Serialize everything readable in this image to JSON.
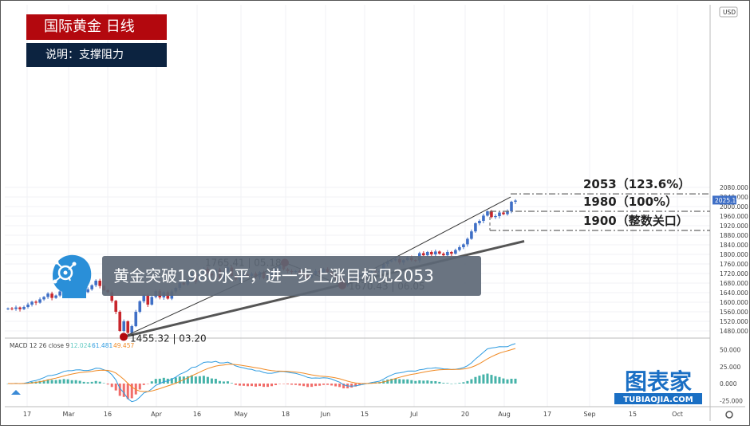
{
  "title": "国际黄金 日线",
  "subtitle": "说明：支撑阻力",
  "headline": "黄金突破1980水平，进一步上涨目标见2053",
  "watermark": {
    "brand": "图表家",
    "domain": "TUBIAOJIA.COM"
  },
  "price_axis": {
    "currency": "USD",
    "current_price": "2025.196"
  },
  "macd": {
    "label": "MACD 12 26 close 9",
    "histogram": "12.024",
    "macd_value": "61.481",
    "signal": "49.457",
    "ticks": [
      "50.000",
      "25.000",
      "0.000",
      "-25.000"
    ]
  },
  "colors": {
    "up": "#3f6fc6",
    "down": "#c8262c",
    "title_bg": "#b3080e",
    "subtitle_bg": "#0c2340",
    "marker": "#b3080e",
    "macd_line": "#2e9be0",
    "signal_line": "#f08a24",
    "hist_up": "#26a69a",
    "hist_down": "#ef5350"
  },
  "chart_data": {
    "type": "candlestick",
    "title": "国际黄金 日线",
    "ylim": [
      1440,
      2100
    ],
    "y_ticks": [
      1480,
      1520,
      1560,
      1600,
      1640,
      1680,
      1720,
      1760,
      1800,
      1840,
      1880,
      1920,
      1960,
      2000,
      2040,
      2080
    ],
    "x_tick_labels": [
      "17",
      "Mar",
      "16",
      "Apr",
      "16",
      "May",
      "18",
      "Jun",
      "15",
      "Jul",
      "20",
      "Aug",
      "17",
      "Sep",
      "15",
      "Oct"
    ],
    "grid": true,
    "pivot_points": [
      {
        "label": "1455.32",
        "date": "03.20",
        "price": 1455.32
      },
      {
        "label": "1765.41",
        "date": "05.18",
        "price": 1765.41
      },
      {
        "label": "1670.43",
        "date": "06.05",
        "price": 1670.43
      }
    ],
    "levels": [
      {
        "label": "2053（123.6%）",
        "price": 2053
      },
      {
        "label": "1980（100%）",
        "price": 1980
      },
      {
        "label": "1900（整数关口）",
        "price": 1900
      }
    ],
    "candles_close": [
      1574,
      1572,
      1578,
      1571,
      1580,
      1590,
      1602,
      1598,
      1612,
      1622,
      1636,
      1618,
      1628,
      1645,
      1658,
      1650,
      1641,
      1660,
      1652,
      1642,
      1654,
      1671,
      1690,
      1668,
      1650,
      1642,
      1606,
      1560,
      1480,
      1520,
      1472,
      1500,
      1560,
      1604,
      1628,
      1590,
      1622,
      1646,
      1620,
      1642,
      1615,
      1645,
      1660,
      1680,
      1674,
      1690,
      1720,
      1686,
      1724,
      1740,
      1720,
      1712,
      1736,
      1700,
      1726,
      1745,
      1710,
      1695,
      1708,
      1716,
      1710,
      1720,
      1705,
      1726,
      1700,
      1710,
      1725,
      1738,
      1752,
      1738,
      1730,
      1727,
      1730,
      1720,
      1715,
      1703,
      1716,
      1730,
      1725,
      1738,
      1727,
      1712,
      1700,
      1695,
      1670,
      1685,
      1697,
      1706,
      1716,
      1719,
      1722,
      1728,
      1725,
      1730,
      1760,
      1770,
      1775,
      1780,
      1766,
      1776,
      1787,
      1776,
      1775,
      1805,
      1796,
      1810,
      1800,
      1812,
      1803,
      1796,
      1810,
      1803,
      1818,
      1830,
      1842,
      1865,
      1896,
      1930,
      1940,
      1962,
      1980,
      1956,
      1960,
      1975,
      1968,
      1980,
      2020,
      2025
    ]
  }
}
